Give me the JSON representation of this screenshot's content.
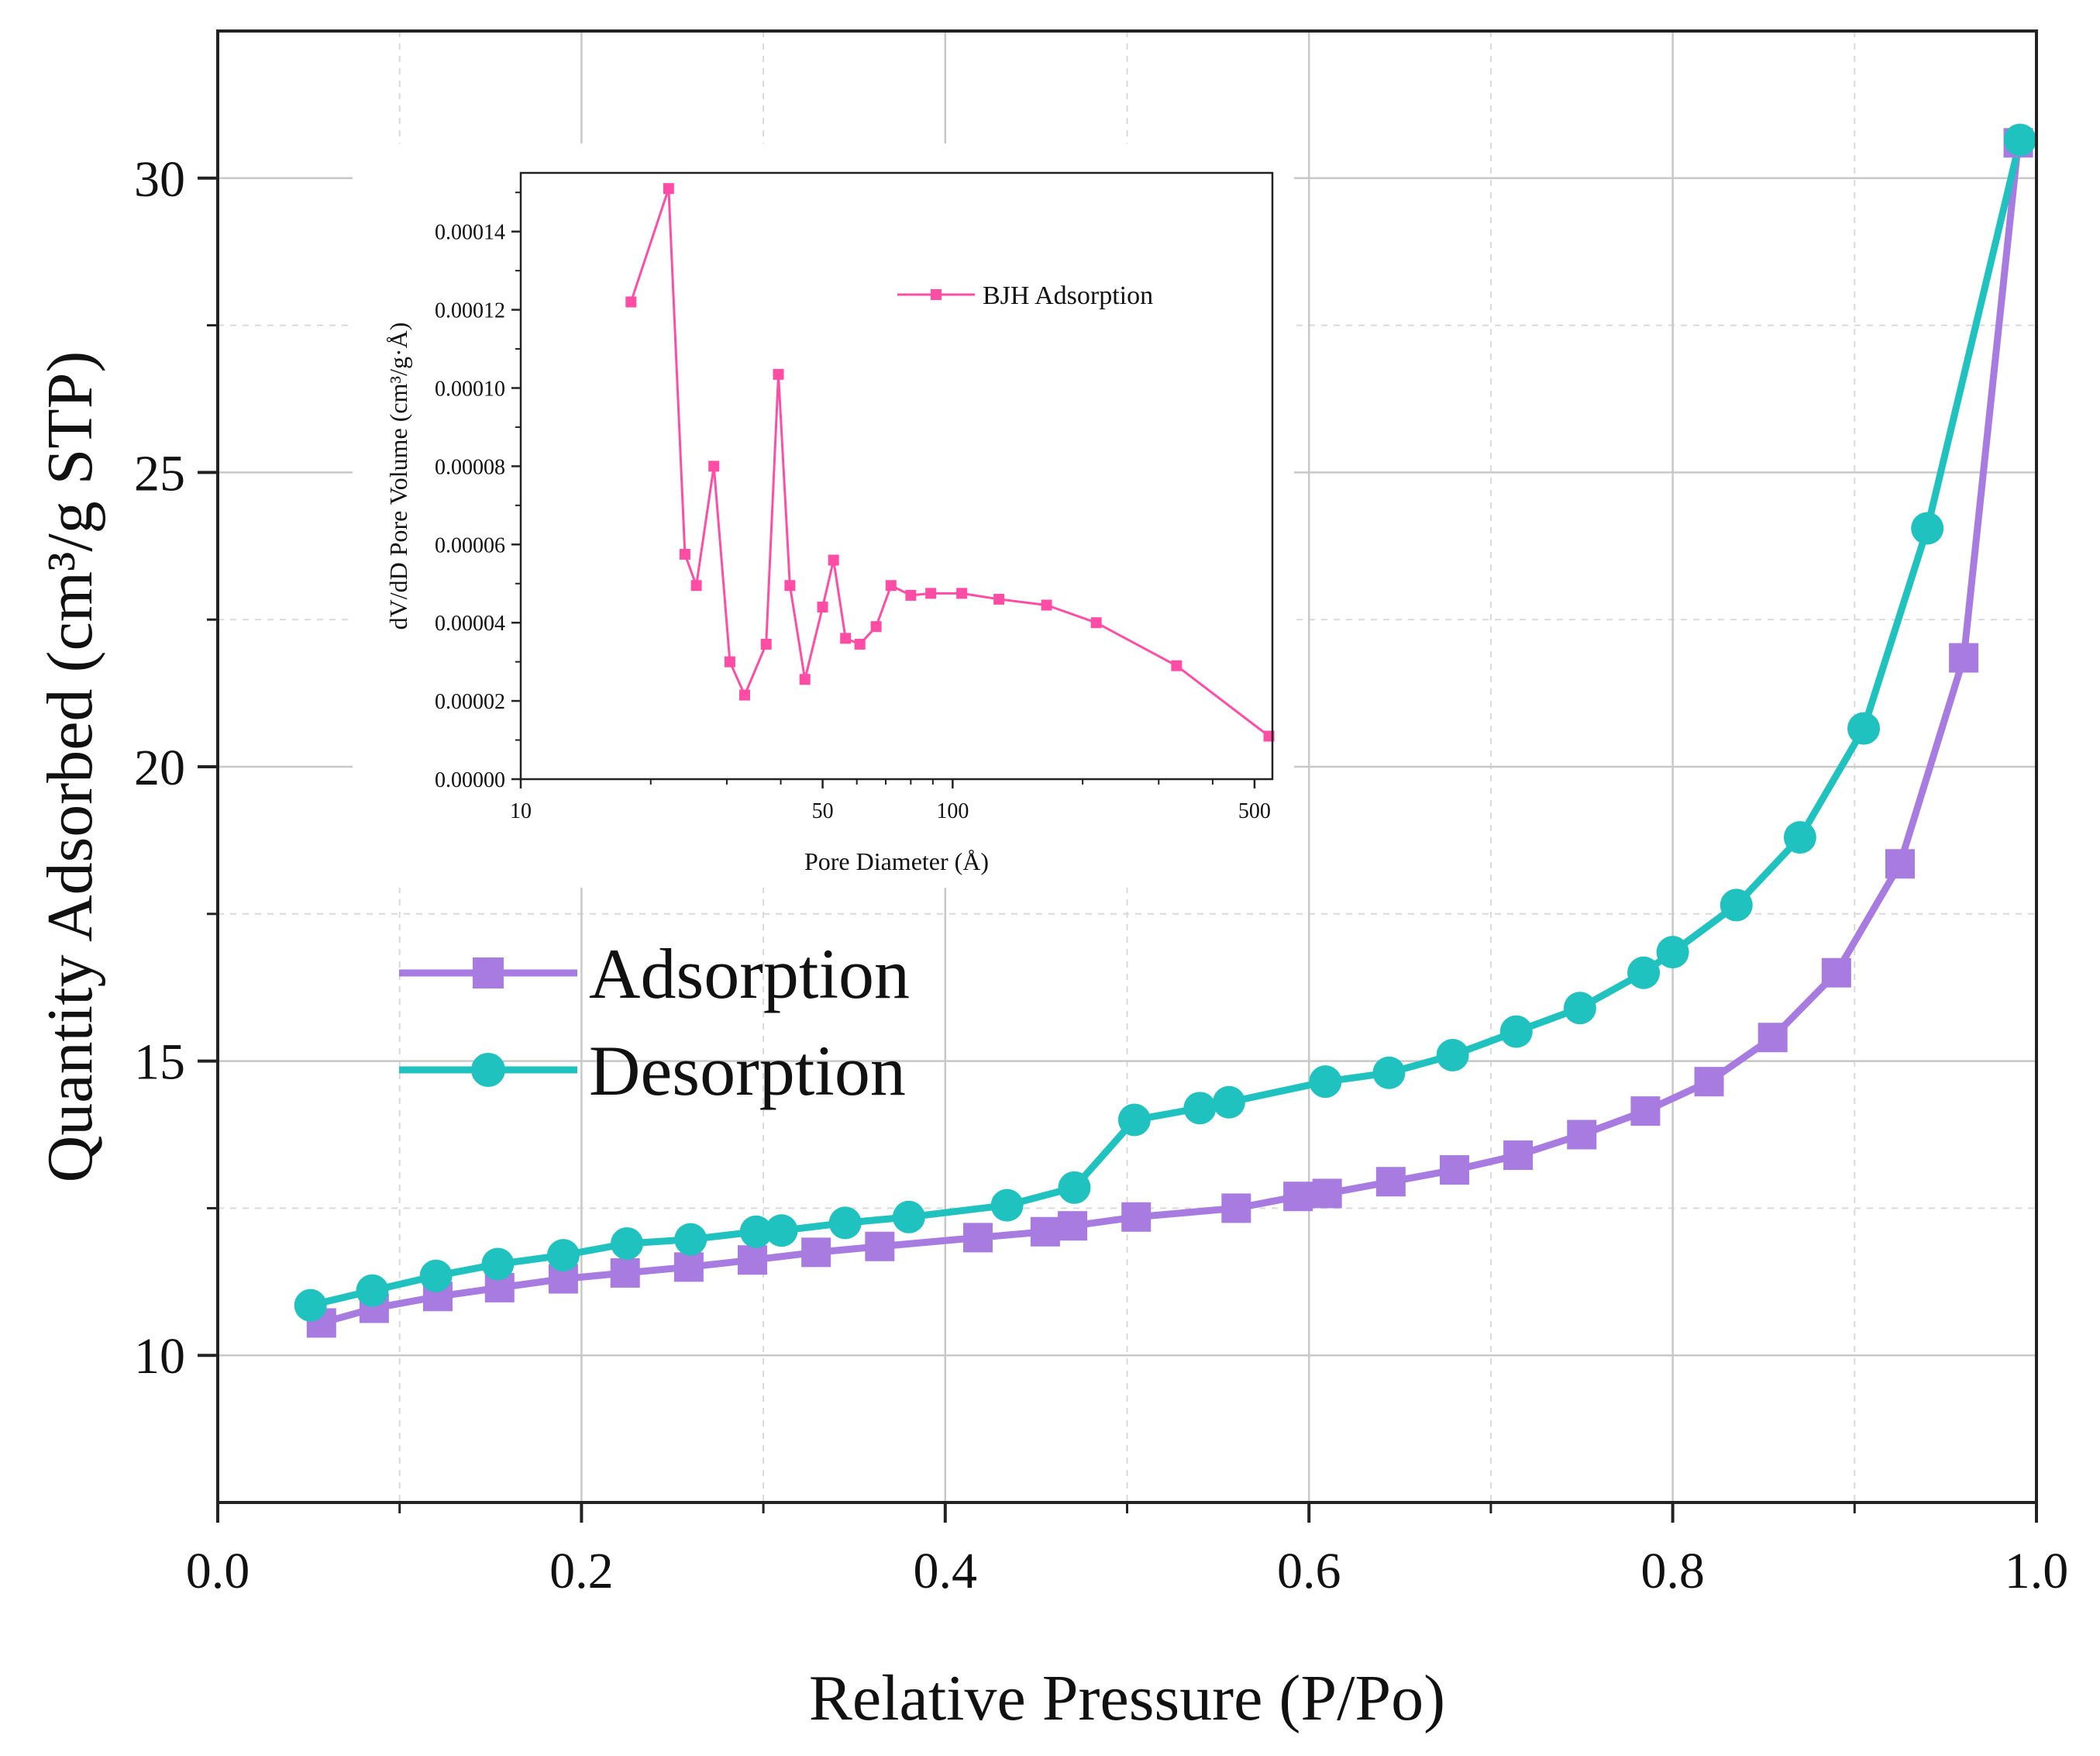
{
  "chart_data": [
    {
      "type": "line",
      "name": "main-isotherm",
      "title": "",
      "xlabel": "Relative Pressure (P/Po)",
      "ylabel": "Quantity Adsorbed (cm³/g STP)",
      "xlim": [
        0.0,
        1.0
      ],
      "ylim": [
        7.5,
        32.5
      ],
      "xticks": [
        0.0,
        0.2,
        0.4,
        0.6,
        0.8,
        1.0
      ],
      "xtick_labels": [
        "0.0",
        "0.2",
        "0.4",
        "0.6",
        "0.8",
        "1.0"
      ],
      "yticks": [
        10,
        15,
        20,
        25,
        30
      ],
      "ytick_labels": [
        "10",
        "15",
        "20",
        "25",
        "30"
      ],
      "grid": true,
      "legend_position": "middle-left",
      "series": [
        {
          "name": "Adsorption",
          "color": "#a77be0",
          "marker": "square",
          "x": [
            0.057,
            0.086,
            0.121,
            0.155,
            0.19,
            0.224,
            0.259,
            0.294,
            0.329,
            0.364,
            0.418,
            0.455,
            0.47,
            0.505,
            0.56,
            0.594,
            0.61,
            0.645,
            0.68,
            0.715,
            0.75,
            0.785,
            0.82,
            0.855,
            0.89,
            0.925,
            0.96,
            0.99
          ],
          "y": [
            10.55,
            10.8,
            11.0,
            11.15,
            11.3,
            11.4,
            11.5,
            11.62,
            11.75,
            11.85,
            12.0,
            12.1,
            12.2,
            12.35,
            12.5,
            12.7,
            12.75,
            12.95,
            13.15,
            13.4,
            13.75,
            14.15,
            14.65,
            15.4,
            16.5,
            18.35,
            21.85,
            30.6
          ]
        },
        {
          "name": "Desorption",
          "color": "#20c2bf",
          "marker": "circle",
          "x": [
            0.051,
            0.085,
            0.12,
            0.154,
            0.19,
            0.225,
            0.26,
            0.296,
            0.31,
            0.345,
            0.38,
            0.434,
            0.471,
            0.504,
            0.54,
            0.556,
            0.609,
            0.644,
            0.679,
            0.714,
            0.749,
            0.784,
            0.8,
            0.835,
            0.87,
            0.905,
            0.94,
            0.991
          ],
          "y": [
            10.85,
            11.1,
            11.35,
            11.55,
            11.7,
            11.9,
            11.97,
            12.1,
            12.12,
            12.25,
            12.35,
            12.55,
            12.85,
            14.0,
            14.2,
            14.3,
            14.65,
            14.8,
            15.1,
            15.5,
            15.9,
            16.5,
            16.85,
            17.65,
            18.8,
            20.65,
            24.05,
            30.65
          ]
        }
      ]
    },
    {
      "type": "line",
      "name": "inset-bjh",
      "title": "",
      "xlabel": "Pore Diameter (Å)",
      "ylabel": "dV/dD Pore Volume (cm³/g·Å)",
      "xscale": "log",
      "xlim": [
        10,
        550
      ],
      "ylim": [
        0.0,
        0.000155
      ],
      "xticks": [
        10,
        50,
        100,
        500
      ],
      "xtick_labels": [
        "10",
        "50",
        "100",
        "500"
      ],
      "yticks": [
        0.0,
        2e-05,
        4e-05,
        6e-05,
        8e-05,
        0.0001,
        0.00012,
        0.00014
      ],
      "ytick_labels": [
        "0.00000",
        "0.00002",
        "0.00004",
        "0.00006",
        "0.00008",
        "0.00010",
        "0.00012",
        "0.00014"
      ],
      "grid": false,
      "legend_position": "top-right",
      "series": [
        {
          "name": "BJH Adsorption",
          "color": "#ff4da6",
          "marker": "square",
          "x": [
            18,
            22,
            24,
            25.5,
            28,
            30.5,
            33,
            37,
            39.5,
            42,
            45.5,
            50,
            53,
            56.5,
            61,
            66.5,
            72,
            80,
            89,
            105,
            128,
            165,
            215,
            330,
            540
          ],
          "y": [
            0.000122,
            0.000151,
            5.75e-05,
            4.95e-05,
            8e-05,
            3e-05,
            2.15e-05,
            3.45e-05,
            0.0001035,
            4.95e-05,
            2.55e-05,
            4.4e-05,
            5.6e-05,
            3.6e-05,
            3.45e-05,
            3.9e-05,
            4.95e-05,
            4.7e-05,
            4.75e-05,
            4.75e-05,
            4.6e-05,
            4.45e-05,
            4e-05,
            2.9e-05,
            1.1e-05
          ]
        }
      ]
    }
  ]
}
